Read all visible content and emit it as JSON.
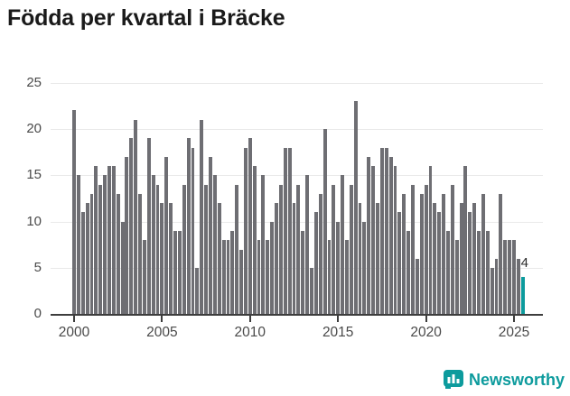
{
  "title": "Födda per kvartal i Bräcke",
  "branding": {
    "name": "Newsworthy"
  },
  "colors": {
    "bar": "#6e6e73",
    "highlight": "#0d9b9d",
    "grid": "#e9e9e9",
    "axis": "#3d3d3d",
    "title": "#1a1a1a",
    "tick_label": "#4a4a4a",
    "brand": "#0d9b9d"
  },
  "chart_data": {
    "type": "bar",
    "title": "Födda per kvartal i Bräcke",
    "xlabel": "",
    "ylabel": "",
    "ylim": [
      0,
      25
    ],
    "y_ticks": [
      0,
      5,
      10,
      15,
      20,
      25
    ],
    "x_ticks": [
      "2000",
      "2005",
      "2010",
      "2015",
      "2020",
      "2025"
    ],
    "grid": "horizontal",
    "legend": "none",
    "highlight_index": 102,
    "highlight_label": "4",
    "categories": [
      "2000 Q1",
      "2000 Q2",
      "2000 Q3",
      "2000 Q4",
      "2001 Q1",
      "2001 Q2",
      "2001 Q3",
      "2001 Q4",
      "2002 Q1",
      "2002 Q2",
      "2002 Q3",
      "2002 Q4",
      "2003 Q1",
      "2003 Q2",
      "2003 Q3",
      "2003 Q4",
      "2004 Q1",
      "2004 Q2",
      "2004 Q3",
      "2004 Q4",
      "2005 Q1",
      "2005 Q2",
      "2005 Q3",
      "2005 Q4",
      "2006 Q1",
      "2006 Q2",
      "2006 Q3",
      "2006 Q4",
      "2007 Q1",
      "2007 Q2",
      "2007 Q3",
      "2007 Q4",
      "2008 Q1",
      "2008 Q2",
      "2008 Q3",
      "2008 Q4",
      "2009 Q1",
      "2009 Q2",
      "2009 Q3",
      "2009 Q4",
      "2010 Q1",
      "2010 Q2",
      "2010 Q3",
      "2010 Q4",
      "2011 Q1",
      "2011 Q2",
      "2011 Q3",
      "2011 Q4",
      "2012 Q1",
      "2012 Q2",
      "2012 Q3",
      "2012 Q4",
      "2013 Q1",
      "2013 Q2",
      "2013 Q3",
      "2013 Q4",
      "2014 Q1",
      "2014 Q2",
      "2014 Q3",
      "2014 Q4",
      "2015 Q1",
      "2015 Q2",
      "2015 Q3",
      "2015 Q4",
      "2016 Q1",
      "2016 Q2",
      "2016 Q3",
      "2016 Q4",
      "2017 Q1",
      "2017 Q2",
      "2017 Q3",
      "2017 Q4",
      "2018 Q1",
      "2018 Q2",
      "2018 Q3",
      "2018 Q4",
      "2019 Q1",
      "2019 Q2",
      "2019 Q3",
      "2019 Q4",
      "2020 Q1",
      "2020 Q2",
      "2020 Q3",
      "2020 Q4",
      "2021 Q1",
      "2021 Q2",
      "2021 Q3",
      "2021 Q4",
      "2022 Q1",
      "2022 Q2",
      "2022 Q3",
      "2022 Q4",
      "2023 Q1",
      "2023 Q2",
      "2023 Q3",
      "2023 Q4",
      "2024 Q1",
      "2024 Q2",
      "2024 Q3",
      "2024 Q4",
      "2025 Q1",
      "2025 Q2",
      "2025 Q3"
    ],
    "values": [
      22,
      15,
      11,
      12,
      13,
      16,
      14,
      15,
      16,
      16,
      13,
      10,
      17,
      19,
      21,
      13,
      8,
      19,
      15,
      14,
      12,
      17,
      12,
      9,
      9,
      14,
      19,
      18,
      5,
      21,
      14,
      17,
      15,
      12,
      8,
      8,
      9,
      14,
      7,
      18,
      19,
      16,
      8,
      15,
      8,
      10,
      12,
      14,
      18,
      18,
      12,
      14,
      9,
      15,
      5,
      11,
      13,
      20,
      8,
      14,
      10,
      15,
      8,
      14,
      23,
      12,
      10,
      17,
      16,
      12,
      18,
      18,
      17,
      16,
      11,
      13,
      9,
      14,
      6,
      13,
      14,
      16,
      12,
      11,
      13,
      9,
      14,
      8,
      12,
      16,
      11,
      12,
      9,
      13,
      9,
      5,
      6,
      13,
      8,
      8,
      8,
      6,
      4
    ]
  }
}
